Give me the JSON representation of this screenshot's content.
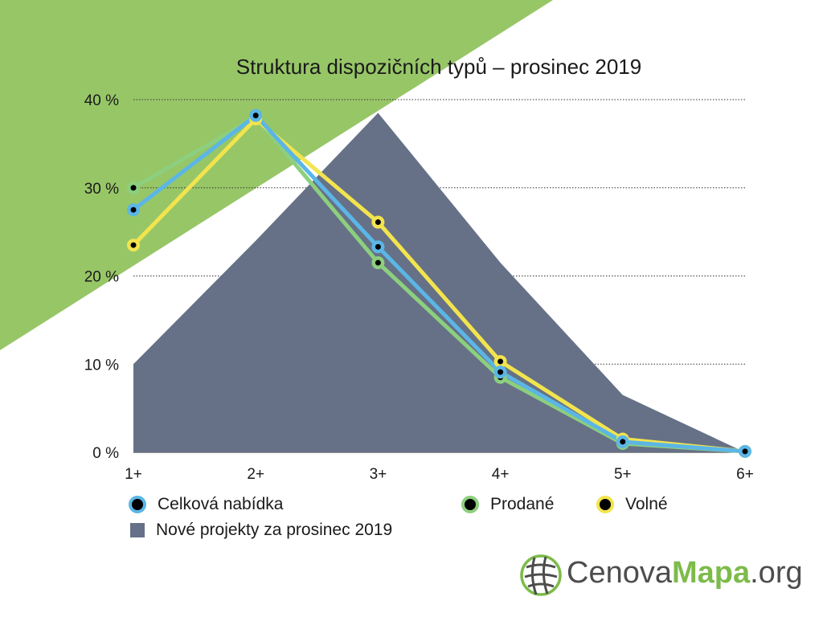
{
  "colors": {
    "background_band": "#97c667",
    "area": "#667187",
    "celkova": "#5bb6e6",
    "prodane": "#8ccf7e",
    "volne": "#f2e44e",
    "grid": "#333333"
  },
  "chart_data": {
    "type": "line",
    "title": "Struktura dispozičních typů – prosinec 2019",
    "categories": [
      "1+",
      "2+",
      "3+",
      "4+",
      "5+",
      "6+"
    ],
    "y_ticks": [
      "0 %",
      "10 %",
      "20 %",
      "30 %",
      "40 %"
    ],
    "ylim": [
      0,
      40
    ],
    "grid": "horizontal dotted",
    "legend_placement": "bottom",
    "series": [
      {
        "name": "Celková nabídka",
        "color": "#5bb6e6",
        "values": [
          27.5,
          38.2,
          23.3,
          9.1,
          1.2,
          0.1
        ]
      },
      {
        "name": "Prodané",
        "color": "#8ccf7e",
        "values": [
          30.0,
          38.0,
          21.5,
          8.5,
          1.0,
          0.1
        ]
      },
      {
        "name": "Volné",
        "color": "#f2e44e",
        "values": [
          23.5,
          37.8,
          26.1,
          10.3,
          1.5,
          0.1
        ]
      }
    ],
    "area_series": {
      "name": "Nové projekty za prosinec 2019",
      "color": "#667187",
      "values": [
        10.0,
        24.0,
        38.5,
        21.5,
        6.5,
        0.0
      ]
    }
  },
  "brand": {
    "part1": "Cenova",
    "part2": "Mapa",
    "part3": ".org",
    "icon": "globe-grid-icon"
  }
}
